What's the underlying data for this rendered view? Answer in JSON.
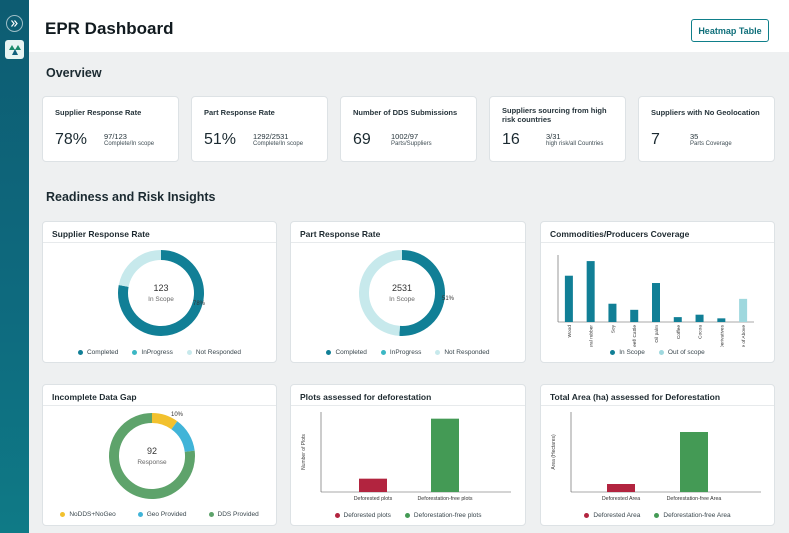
{
  "header": {
    "title": "EPR Dashboard",
    "heatmap_button": "Heatmap Table"
  },
  "sections": {
    "overview": "Overview",
    "insights": "Readiness and Risk Insights"
  },
  "kpis": [
    {
      "label": "Supplier Response Rate",
      "value": "78%",
      "ratio": "97/123",
      "sub": "Complete/In scope"
    },
    {
      "label": "Part Response Rate",
      "value": "51%",
      "ratio": "1292/2531",
      "sub": "Complete/In scope"
    },
    {
      "label": "Number of DDS Submissions",
      "value": "69",
      "ratio": "1002/97",
      "sub": "Parts/Suppliers"
    },
    {
      "label": "Suppliers sourcing from high risk countries",
      "value": "16",
      "ratio": "3/31",
      "sub": "high risk/all Countries"
    },
    {
      "label": "Suppliers with No Geolocation",
      "value": "7",
      "ratio": "35",
      "sub": "Parts Coverage"
    }
  ],
  "cards": {
    "supplier": {
      "title": "Supplier Response Rate",
      "center_value": "123",
      "center_label": "In Scope",
      "legend": [
        "Completed",
        "InProgress",
        "Not Responded"
      ]
    },
    "part": {
      "title": "Part Response Rate",
      "center_value": "2531",
      "center_label": "In Scope",
      "legend": [
        "Completed",
        "InProgress",
        "Not Responded"
      ]
    },
    "commodities": {
      "title": "Commodities/Producers Coverage",
      "legend": [
        "In Scope",
        "Out of scope"
      ]
    },
    "gap": {
      "title": "Incomplete Data Gap",
      "center_value": "92",
      "center_label": "Response",
      "legend": [
        "NoDDS+NoGeo",
        "Geo Provided",
        "DDS Provided"
      ]
    },
    "plots": {
      "title": "Plots assessed for deforestation",
      "legend": [
        "Deforested plots",
        "Deforestation-free plots"
      ]
    },
    "area": {
      "title": "Total Area (ha) assessed for Deforestation",
      "legend": [
        "Deforested Area",
        "Deforestation-free Area"
      ]
    }
  },
  "colors": {
    "teal_dark": "#117f96",
    "teal_mid": "#3cb7c4",
    "teal_light": "#c7e9ec",
    "yellow": "#f2c12e",
    "sky": "#41b4d8",
    "green": "#5ea36b",
    "crimson": "#b2243f",
    "bar_green": "#449a55"
  },
  "chart_data": [
    {
      "type": "pie",
      "title": "Supplier Response Rate",
      "categories": [
        "Completed",
        "InProgress",
        "Not Responded"
      ],
      "values": [
        78,
        0,
        22
      ],
      "data_labels": [
        "78%"
      ]
    },
    {
      "type": "pie",
      "title": "Part Response Rate",
      "categories": [
        "Completed",
        "InProgress",
        "Not Responded"
      ],
      "values": [
        51,
        0,
        49
      ],
      "data_labels": [
        "51%"
      ]
    },
    {
      "type": "bar",
      "title": "Commodities/Producers Coverage",
      "categories": [
        "Wood",
        "Natural rubber",
        "Soy",
        "Beef/ Cattle",
        "Oil palm",
        "Coffee",
        "Cocoa",
        "CDG Derivatives",
        "None of Above"
      ],
      "series": [
        {
          "name": "In Scope",
          "values": [
            38,
            50,
            15,
            10,
            32,
            4,
            6,
            3,
            0
          ]
        },
        {
          "name": "Out of scope",
          "values": [
            0,
            0,
            0,
            0,
            0,
            0,
            0,
            0,
            19
          ]
        }
      ]
    },
    {
      "type": "pie",
      "title": "Incomplete Data Gap",
      "categories": [
        "NoDDS+NoGeo",
        "Geo Provided",
        "DDS Provided"
      ],
      "values": [
        10,
        13,
        77
      ],
      "data_labels": [
        "10%"
      ]
    },
    {
      "type": "bar",
      "title": "Plots assessed for deforestation",
      "ylabel": "Number of Plots",
      "categories": [
        "Deforested plots",
        "Deforestation-free plots"
      ],
      "values": [
        10,
        55
      ]
    },
    {
      "type": "bar",
      "title": "Total Area (ha) assessed for Deforestation",
      "ylabel": "Area (Hectares)",
      "categories": [
        "Deforested Area",
        "Deforestation-free Area"
      ],
      "values": [
        6,
        45
      ]
    }
  ]
}
